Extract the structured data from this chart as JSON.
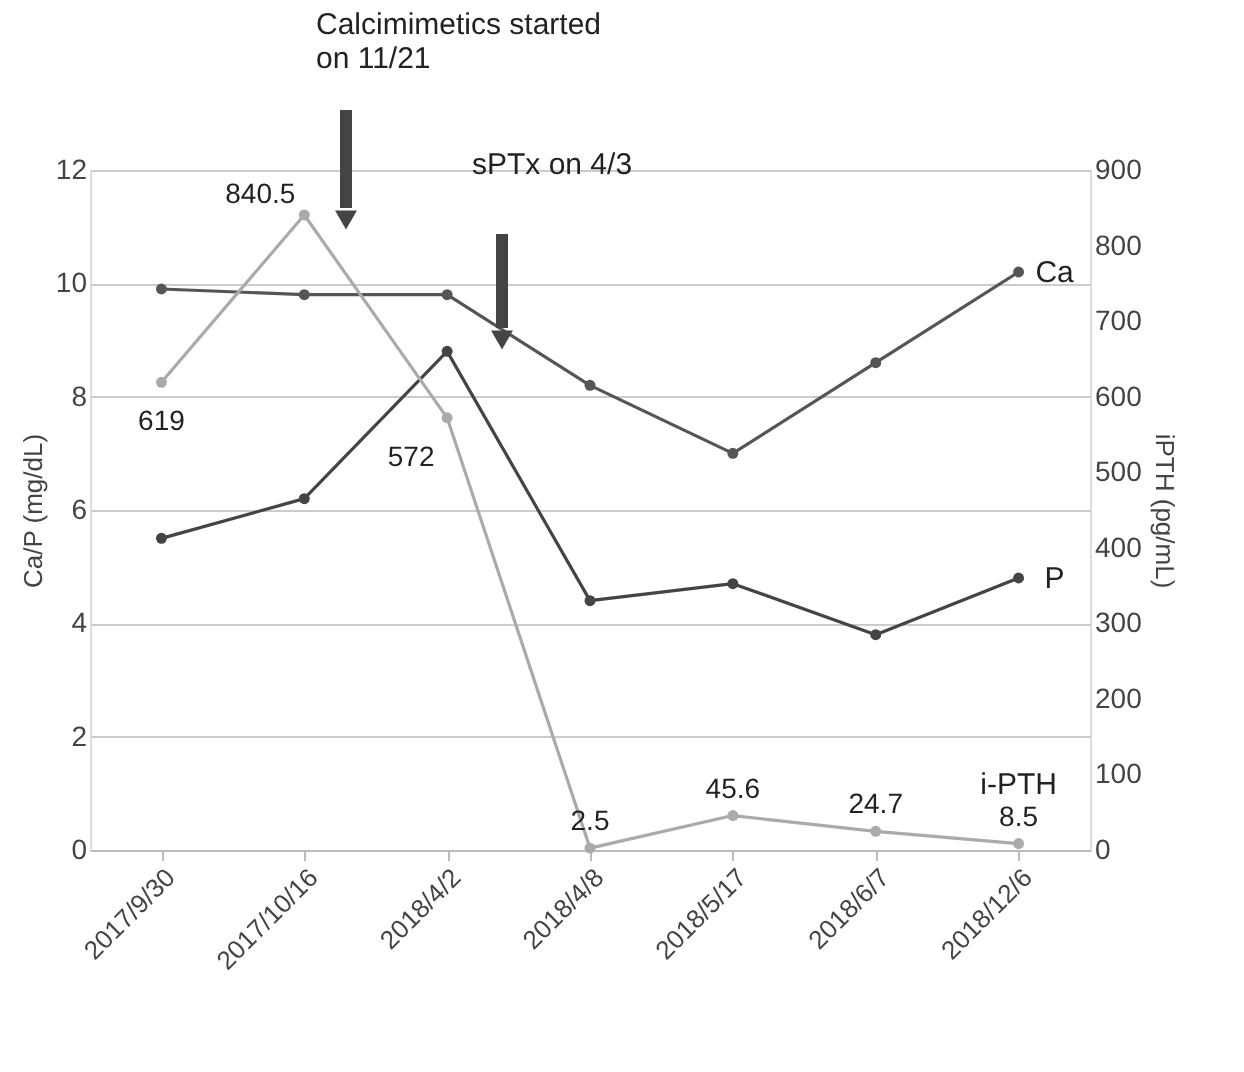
{
  "chart_data": {
    "type": "line",
    "categories": [
      "2017/9/30",
      "2017/10/16",
      "2018/4/2",
      "2018/4/8",
      "2018/5/17",
      "2018/6/7",
      "2018/12/6"
    ],
    "series": [
      {
        "name": "Ca",
        "color": "#555555",
        "values": [
          9.9,
          9.8,
          9.8,
          8.2,
          7.0,
          8.6,
          10.2
        ]
      },
      {
        "name": "P",
        "color": "#444444",
        "values": [
          5.5,
          6.2,
          8.8,
          4.4,
          4.7,
          3.8,
          4.8
        ]
      },
      {
        "name": "i-PTH",
        "color": "#aaaaaa",
        "axis": "y2",
        "values": [
          619,
          840.5,
          572,
          2.5,
          45.6,
          24.7,
          8.5
        ],
        "value_labels": [
          "619",
          "840.5",
          "572",
          "2.5",
          "45.6",
          "24.7",
          "8.5"
        ]
      }
    ],
    "ylabel": "Ca/P (mg/dL)",
    "y2label": "iPTH (pg/mL)",
    "ylim": [
      0,
      12
    ],
    "yticks": [
      0,
      2,
      4,
      6,
      8,
      10,
      12
    ],
    "y2lim": [
      0,
      900
    ],
    "y2ticks": [
      0,
      100,
      200,
      300,
      400,
      500,
      600,
      700,
      800,
      900
    ],
    "grid": "y",
    "marker": "circle",
    "line_style": "solid",
    "annotations": [
      "Calcimimetics started\non 11/21",
      "sPTx  on 4/3"
    ]
  }
}
